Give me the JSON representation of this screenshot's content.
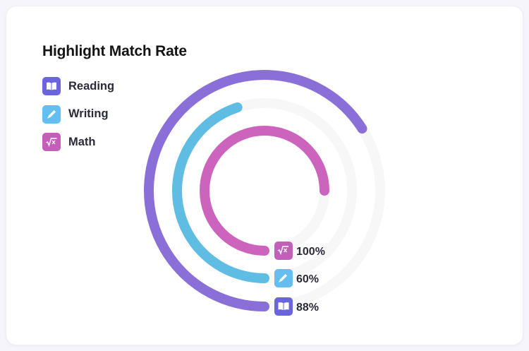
{
  "chart_data": {
    "type": "radial-bar",
    "title": "Highlight Match Rate",
    "series": [
      {
        "name": "Reading",
        "value": 88,
        "value_label": "88%",
        "color": "#8b6fd8",
        "icon_color": "#6a64e0",
        "icon": "open-book-icon"
      },
      {
        "name": "Writing",
        "value": 60,
        "value_label": "60%",
        "color": "#5fbde3",
        "icon_color": "#64bff0",
        "icon": "pencil-icon"
      },
      {
        "name": "Math",
        "value": 100,
        "value_label": "100%",
        "color": "#cc63bd",
        "icon_color": "#c15fb9",
        "icon": "square-root-icon"
      }
    ],
    "track_color": "#f7f7f7"
  }
}
